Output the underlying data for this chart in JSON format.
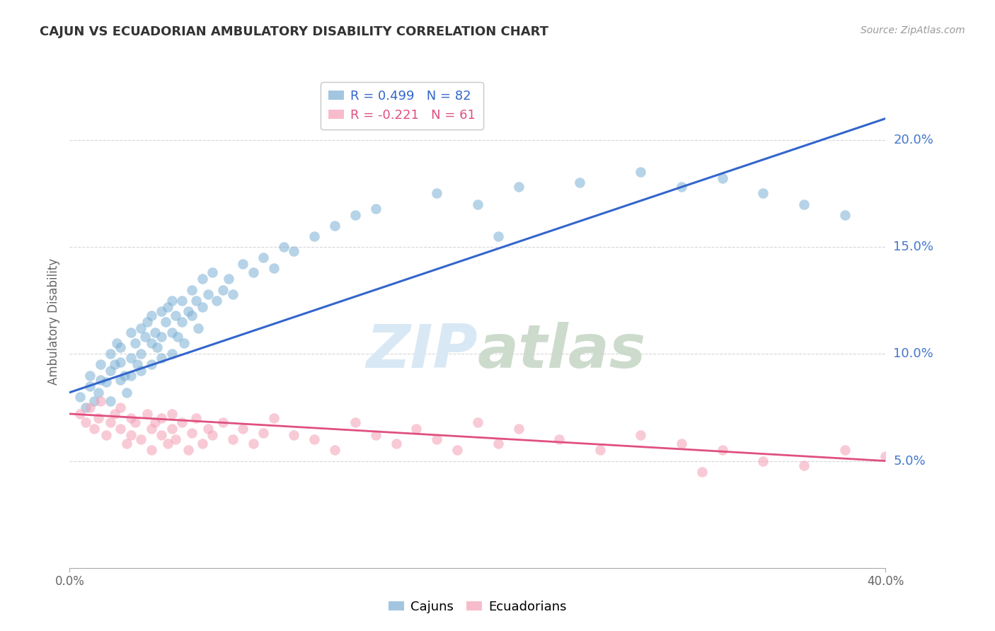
{
  "title": "CAJUN VS ECUADORIAN AMBULATORY DISABILITY CORRELATION CHART",
  "source": "Source: ZipAtlas.com",
  "ylabel": "Ambulatory Disability",
  "right_yticks": [
    "20.0%",
    "15.0%",
    "10.0%",
    "5.0%"
  ],
  "right_ytick_vals": [
    0.2,
    0.15,
    0.1,
    0.05
  ],
  "x_min": 0.0,
  "x_max": 0.4,
  "y_min": 0.0,
  "y_max": 0.23,
  "cajun_color": "#7BAFD4",
  "ecuadorian_color": "#F4A0B5",
  "cajun_line_color": "#3366CC",
  "ecuadorian_line_color": "#E05080",
  "legend_cajun_label": "R = 0.499   N = 82",
  "legend_ecuadorian_label": "R = -0.221   N = 61",
  "cajun_intercept": 0.082,
  "cajun_slope": 0.32,
  "ecuadorian_intercept": 0.072,
  "ecuadorian_slope": -0.055,
  "cajun_scatter_x": [
    0.005,
    0.008,
    0.01,
    0.01,
    0.012,
    0.014,
    0.015,
    0.015,
    0.018,
    0.02,
    0.02,
    0.02,
    0.022,
    0.023,
    0.025,
    0.025,
    0.025,
    0.027,
    0.028,
    0.03,
    0.03,
    0.03,
    0.032,
    0.033,
    0.035,
    0.035,
    0.035,
    0.037,
    0.038,
    0.04,
    0.04,
    0.04,
    0.042,
    0.043,
    0.045,
    0.045,
    0.045,
    0.047,
    0.048,
    0.05,
    0.05,
    0.05,
    0.052,
    0.053,
    0.055,
    0.055,
    0.056,
    0.058,
    0.06,
    0.06,
    0.062,
    0.063,
    0.065,
    0.065,
    0.068,
    0.07,
    0.072,
    0.075,
    0.078,
    0.08,
    0.085,
    0.09,
    0.095,
    0.1,
    0.105,
    0.11,
    0.12,
    0.13,
    0.14,
    0.15,
    0.18,
    0.2,
    0.22,
    0.25,
    0.28,
    0.3,
    0.32,
    0.34,
    0.36,
    0.38,
    0.185,
    0.21
  ],
  "cajun_scatter_y": [
    0.08,
    0.075,
    0.085,
    0.09,
    0.078,
    0.082,
    0.088,
    0.095,
    0.087,
    0.092,
    0.1,
    0.078,
    0.095,
    0.105,
    0.088,
    0.096,
    0.103,
    0.09,
    0.082,
    0.098,
    0.11,
    0.09,
    0.105,
    0.095,
    0.112,
    0.1,
    0.092,
    0.108,
    0.115,
    0.105,
    0.118,
    0.095,
    0.11,
    0.103,
    0.12,
    0.108,
    0.098,
    0.115,
    0.122,
    0.11,
    0.125,
    0.1,
    0.118,
    0.108,
    0.125,
    0.115,
    0.105,
    0.12,
    0.13,
    0.118,
    0.125,
    0.112,
    0.135,
    0.122,
    0.128,
    0.138,
    0.125,
    0.13,
    0.135,
    0.128,
    0.142,
    0.138,
    0.145,
    0.14,
    0.15,
    0.148,
    0.155,
    0.16,
    0.165,
    0.168,
    0.175,
    0.17,
    0.178,
    0.18,
    0.185,
    0.178,
    0.182,
    0.175,
    0.17,
    0.165,
    0.21,
    0.155
  ],
  "ecuadorian_scatter_x": [
    0.005,
    0.008,
    0.01,
    0.012,
    0.014,
    0.015,
    0.018,
    0.02,
    0.022,
    0.025,
    0.025,
    0.028,
    0.03,
    0.03,
    0.032,
    0.035,
    0.038,
    0.04,
    0.04,
    0.042,
    0.045,
    0.045,
    0.048,
    0.05,
    0.05,
    0.052,
    0.055,
    0.058,
    0.06,
    0.062,
    0.065,
    0.068,
    0.07,
    0.075,
    0.08,
    0.085,
    0.09,
    0.095,
    0.1,
    0.11,
    0.12,
    0.13,
    0.14,
    0.15,
    0.16,
    0.17,
    0.18,
    0.19,
    0.2,
    0.21,
    0.22,
    0.24,
    0.26,
    0.28,
    0.3,
    0.31,
    0.32,
    0.34,
    0.36,
    0.38,
    0.4
  ],
  "ecuadorian_scatter_y": [
    0.072,
    0.068,
    0.075,
    0.065,
    0.07,
    0.078,
    0.062,
    0.068,
    0.072,
    0.065,
    0.075,
    0.058,
    0.07,
    0.062,
    0.068,
    0.06,
    0.072,
    0.065,
    0.055,
    0.068,
    0.062,
    0.07,
    0.058,
    0.065,
    0.072,
    0.06,
    0.068,
    0.055,
    0.063,
    0.07,
    0.058,
    0.065,
    0.062,
    0.068,
    0.06,
    0.065,
    0.058,
    0.063,
    0.07,
    0.062,
    0.06,
    0.055,
    0.068,
    0.062,
    0.058,
    0.065,
    0.06,
    0.055,
    0.068,
    0.058,
    0.065,
    0.06,
    0.055,
    0.062,
    0.058,
    0.045,
    0.055,
    0.05,
    0.048,
    0.055,
    0.052
  ],
  "background_color": "#FFFFFF",
  "grid_color": "#CCCCCC",
  "title_color": "#333333",
  "right_label_color": "#4477CC",
  "watermark_color": "#D8E8F5",
  "bottom_legend_labels": [
    "Cajuns",
    "Ecuadorians"
  ]
}
